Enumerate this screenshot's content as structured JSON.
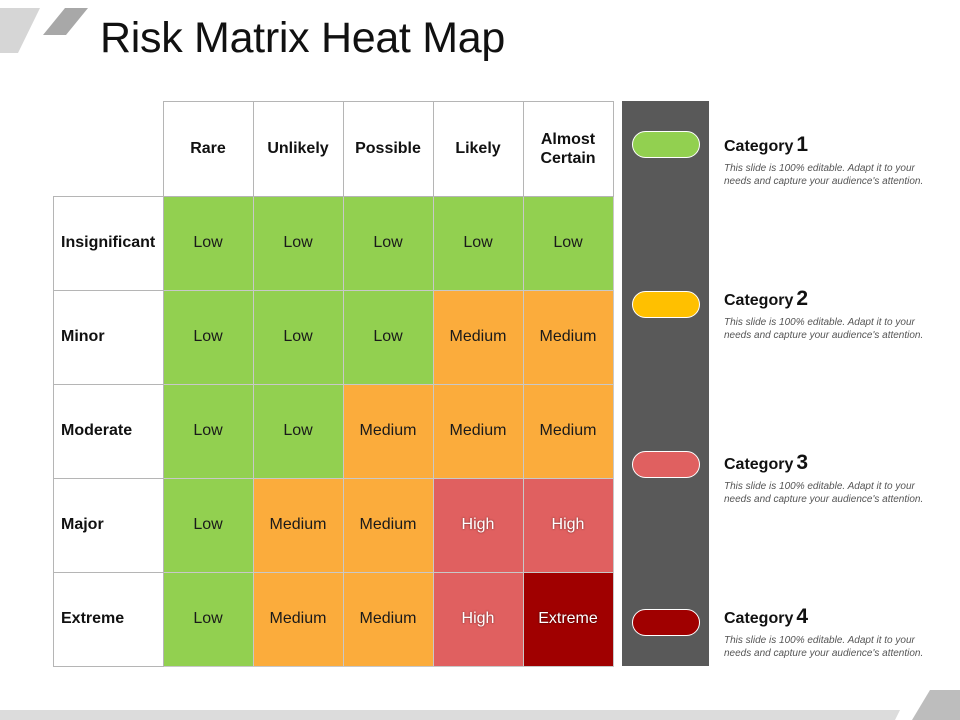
{
  "title": "Risk Matrix Heat Map",
  "colors": {
    "low": "#92d050",
    "medium": "#fbac3c",
    "high": "#e06060",
    "extreme": "#a00000",
    "sidebar": "#595959",
    "category_1": "#92d050",
    "category_2": "#ffc000",
    "category_3": "#e06060",
    "category_4": "#a00000"
  },
  "matrix": {
    "columns": [
      "Rare",
      "Unlikely",
      "Possible",
      "Likely",
      "Almost Certain"
    ],
    "rows": [
      {
        "label": "Insignificant",
        "cells": [
          "Low",
          "Low",
          "Low",
          "Low",
          "Low"
        ],
        "levels": [
          "low",
          "low",
          "low",
          "low",
          "low"
        ]
      },
      {
        "label": "Minor",
        "cells": [
          "Low",
          "Low",
          "Low",
          "Medium",
          "Medium"
        ],
        "levels": [
          "low",
          "low",
          "low",
          "medium",
          "medium"
        ]
      },
      {
        "label": "Moderate",
        "cells": [
          "Low",
          "Low",
          "Medium",
          "Medium",
          "Medium"
        ],
        "levels": [
          "low",
          "low",
          "medium",
          "medium",
          "medium"
        ]
      },
      {
        "label": "Major",
        "cells": [
          "Low",
          "Medium",
          "Medium",
          "High",
          "High"
        ],
        "levels": [
          "low",
          "medium",
          "medium",
          "high",
          "high"
        ]
      },
      {
        "label": "Extreme",
        "cells": [
          "Low",
          "Medium",
          "Medium",
          "High",
          "Extreme"
        ],
        "levels": [
          "low",
          "medium",
          "medium",
          "high",
          "extreme"
        ]
      }
    ]
  },
  "categories": [
    {
      "word": "Category",
      "number": "1",
      "description": "This slide is 100% editable. Adapt it to your needs and capture your audience's attention."
    },
    {
      "word": "Category",
      "number": "2",
      "description": "This slide is 100% editable. Adapt it to your needs and capture your audience's attention."
    },
    {
      "word": "Category",
      "number": "3",
      "description": "This slide is 100% editable. Adapt it to your needs and capture your audience's attention."
    },
    {
      "word": "Category",
      "number": "4",
      "description": "This slide is 100% editable. Adapt it to your needs and capture your audience's attention."
    }
  ]
}
